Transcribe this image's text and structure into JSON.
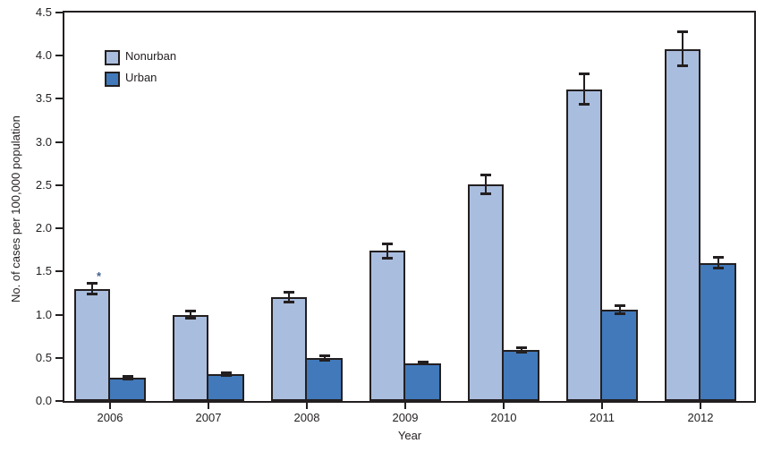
{
  "chart_data": {
    "type": "bar",
    "title": "",
    "xlabel": "Year",
    "ylabel": "No. of cases per 100,000 population",
    "categories": [
      "2006",
      "2007",
      "2008",
      "2009",
      "2010",
      "2011",
      "2012"
    ],
    "series": [
      {
        "name": "Nonurban",
        "color": "#a9bdde",
        "values": [
          1.3,
          1.0,
          1.2,
          1.74,
          2.51,
          3.61,
          4.08
        ],
        "errors": [
          0.07,
          0.05,
          0.06,
          0.09,
          0.11,
          0.18,
          0.2
        ]
      },
      {
        "name": "Urban",
        "color": "#4179bb",
        "values": [
          0.27,
          0.31,
          0.5,
          0.44,
          0.59,
          1.06,
          1.6
        ],
        "errors": [
          0.02,
          0.02,
          0.03,
          0.02,
          0.03,
          0.05,
          0.07
        ]
      }
    ],
    "ylim": [
      0,
      4.5
    ],
    "ytick_step": 0.5,
    "ytick_labels": [
      "0.0",
      "0.5",
      "1.0",
      "1.5",
      "2.0",
      "2.5",
      "3.0",
      "3.5",
      "4.0",
      "4.5"
    ],
    "annotation": {
      "text": "*",
      "category": "2006",
      "series": "Nonurban"
    },
    "legend": {
      "position": "top-left-inside",
      "entries": [
        "Nonurban",
        "Urban"
      ]
    },
    "grid": false,
    "error_bars": true,
    "axis_color": "#231f20",
    "background_color": "#ffffff"
  }
}
